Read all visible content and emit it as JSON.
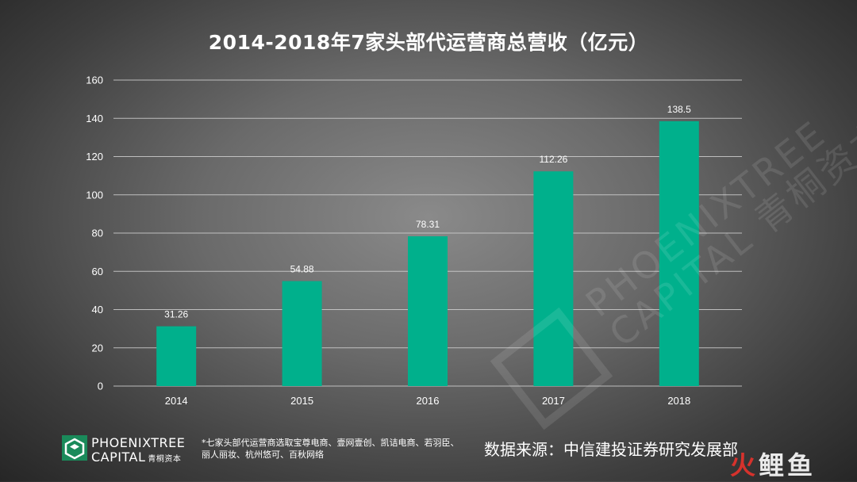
{
  "title": "2014-2018年7家头部代运营商总营收（亿元）",
  "chart_data": {
    "type": "bar",
    "title": "2014-2018年7家头部代运营商总营收（亿元）",
    "categories": [
      "2014",
      "2015",
      "2016",
      "2017",
      "2018"
    ],
    "values": [
      31.26,
      54.88,
      78.31,
      112.26,
      138.5
    ],
    "value_labels": [
      "31.26",
      "54.88",
      "78.31",
      "112.26",
      "138.5"
    ],
    "xlabel": "",
    "ylabel": "",
    "ylim": [
      0,
      160
    ],
    "yticks": [
      0,
      20,
      40,
      60,
      80,
      100,
      120,
      140,
      160
    ],
    "grid": true,
    "legend": "none",
    "bar_color": "#00b08c"
  },
  "logo": {
    "line1": "PHOENIXTREE",
    "line2": "CAPITAL",
    "line2_cn": "青桐资本"
  },
  "watermark": {
    "line1": "PHOENIXTREE",
    "line2": "CAPITAL 青桐资本"
  },
  "footnote": "*七家头部代运营商选取宝尊电商、壹网壹创、凯诘电商、若羽臣、丽人丽妆、杭州悠可、百秋网络",
  "source": "数据来源：中信建投证券研究发展部",
  "brand": {
    "part1": "火",
    "part2": "鲤鱼"
  },
  "colors": {
    "bar": "#00b08c",
    "text": "#ffffff",
    "logo_green": "#1a8a5a",
    "brand_red": "#e8322c"
  }
}
